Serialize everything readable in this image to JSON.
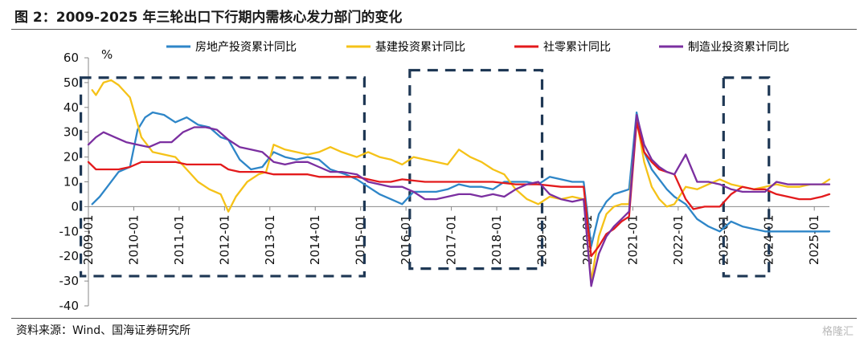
{
  "title": "图 2：2009-2025 年三轮出口下行期内需核心发力部门的变化",
  "source": "资料来源：Wind、国海证券研究所",
  "watermark": "格隆汇",
  "chart_data": {
    "type": "line",
    "ylabel": "%",
    "ylim": [
      -40,
      60
    ],
    "yticks": [
      -40,
      -30,
      -20,
      -10,
      0,
      10,
      20,
      30,
      40,
      50,
      60
    ],
    "x_range": [
      "2009-01",
      "2025-05"
    ],
    "xticks": [
      "2009-01",
      "2010-01",
      "2011-01",
      "2012-01",
      "2013-01",
      "2014-01",
      "2015-01",
      "2016-01",
      "2017-01",
      "2018-01",
      "2019-01",
      "2020-01",
      "2021-01",
      "2022-01",
      "2023-01",
      "2024-01",
      "2025-01"
    ],
    "grid": false,
    "legend_position": "top",
    "series": [
      {
        "name": "房地产投资累计同比",
        "color": "#2E86C8",
        "points": [
          [
            "2009-02",
            1
          ],
          [
            "2009-04",
            4
          ],
          [
            "2009-06",
            8
          ],
          [
            "2009-09",
            14
          ],
          [
            "2009-12",
            16
          ],
          [
            "2010-02",
            31
          ],
          [
            "2010-04",
            36
          ],
          [
            "2010-06",
            38
          ],
          [
            "2010-09",
            37
          ],
          [
            "2010-12",
            34
          ],
          [
            "2011-03",
            36
          ],
          [
            "2011-06",
            33
          ],
          [
            "2011-09",
            32
          ],
          [
            "2011-12",
            28
          ],
          [
            "2012-02",
            27
          ],
          [
            "2012-05",
            19
          ],
          [
            "2012-08",
            15
          ],
          [
            "2012-11",
            16
          ],
          [
            "2013-02",
            22
          ],
          [
            "2013-05",
            20
          ],
          [
            "2013-08",
            19
          ],
          [
            "2013-11",
            20
          ],
          [
            "2014-02",
            19
          ],
          [
            "2014-05",
            15
          ],
          [
            "2014-09",
            13
          ],
          [
            "2014-12",
            11
          ],
          [
            "2015-03",
            8
          ],
          [
            "2015-06",
            5
          ],
          [
            "2015-09",
            3
          ],
          [
            "2015-12",
            1
          ],
          [
            "2016-03",
            6
          ],
          [
            "2016-06",
            6
          ],
          [
            "2016-09",
            6
          ],
          [
            "2016-12",
            7
          ],
          [
            "2017-03",
            9
          ],
          [
            "2017-06",
            8
          ],
          [
            "2017-09",
            8
          ],
          [
            "2017-12",
            7
          ],
          [
            "2018-03",
            10
          ],
          [
            "2018-06",
            10
          ],
          [
            "2018-09",
            10
          ],
          [
            "2018-12",
            9
          ],
          [
            "2019-03",
            12
          ],
          [
            "2019-06",
            11
          ],
          [
            "2019-09",
            10
          ],
          [
            "2019-12",
            10
          ],
          [
            "2020-02",
            -16
          ],
          [
            "2020-04",
            -3
          ],
          [
            "2020-06",
            2
          ],
          [
            "2020-08",
            5
          ],
          [
            "2020-10",
            6
          ],
          [
            "2020-12",
            7
          ],
          [
            "2021-02",
            38
          ],
          [
            "2021-04",
            22
          ],
          [
            "2021-06",
            15
          ],
          [
            "2021-08",
            11
          ],
          [
            "2021-10",
            7
          ],
          [
            "2021-12",
            4
          ],
          [
            "2022-03",
            1
          ],
          [
            "2022-06",
            -5
          ],
          [
            "2022-09",
            -8
          ],
          [
            "2022-12",
            -10
          ],
          [
            "2023-03",
            -6
          ],
          [
            "2023-06",
            -8
          ],
          [
            "2023-09",
            -9
          ],
          [
            "2023-12",
            -10
          ],
          [
            "2024-03",
            -10
          ],
          [
            "2024-06",
            -10
          ],
          [
            "2024-09",
            -10
          ],
          [
            "2024-12",
            -10
          ],
          [
            "2025-03",
            -10
          ],
          [
            "2025-05",
            -10
          ]
        ]
      },
      {
        "name": "基建投资累计同比",
        "color": "#F5C218",
        "points": [
          [
            "2009-02",
            47
          ],
          [
            "2009-03",
            45
          ],
          [
            "2009-05",
            50
          ],
          [
            "2009-07",
            51
          ],
          [
            "2009-09",
            49
          ],
          [
            "2009-12",
            44
          ],
          [
            "2010-03",
            28
          ],
          [
            "2010-06",
            22
          ],
          [
            "2010-09",
            21
          ],
          [
            "2010-12",
            20
          ],
          [
            "2011-03",
            15
          ],
          [
            "2011-06",
            10
          ],
          [
            "2011-09",
            7
          ],
          [
            "2011-12",
            5
          ],
          [
            "2012-02",
            -2
          ],
          [
            "2012-04",
            4
          ],
          [
            "2012-07",
            10
          ],
          [
            "2012-10",
            13
          ],
          [
            "2012-12",
            14
          ],
          [
            "2013-02",
            25
          ],
          [
            "2013-05",
            23
          ],
          [
            "2013-08",
            22
          ],
          [
            "2013-11",
            21
          ],
          [
            "2014-02",
            22
          ],
          [
            "2014-05",
            24
          ],
          [
            "2014-08",
            22
          ],
          [
            "2014-12",
            20
          ],
          [
            "2015-03",
            22
          ],
          [
            "2015-06",
            20
          ],
          [
            "2015-09",
            19
          ],
          [
            "2015-12",
            17
          ],
          [
            "2016-03",
            20
          ],
          [
            "2016-06",
            19
          ],
          [
            "2016-09",
            18
          ],
          [
            "2016-12",
            17
          ],
          [
            "2017-03",
            23
          ],
          [
            "2017-06",
            20
          ],
          [
            "2017-09",
            18
          ],
          [
            "2017-12",
            15
          ],
          [
            "2018-03",
            13
          ],
          [
            "2018-06",
            7
          ],
          [
            "2018-09",
            3
          ],
          [
            "2018-12",
            1
          ],
          [
            "2019-03",
            4
          ],
          [
            "2019-06",
            3
          ],
          [
            "2019-09",
            4
          ],
          [
            "2019-12",
            3
          ],
          [
            "2020-02",
            -30
          ],
          [
            "2020-04",
            -12
          ],
          [
            "2020-06",
            -3
          ],
          [
            "2020-08",
            0
          ],
          [
            "2020-10",
            1
          ],
          [
            "2020-12",
            1
          ],
          [
            "2021-02",
            35
          ],
          [
            "2021-04",
            18
          ],
          [
            "2021-06",
            8
          ],
          [
            "2021-08",
            3
          ],
          [
            "2021-10",
            0
          ],
          [
            "2021-12",
            1
          ],
          [
            "2022-03",
            8
          ],
          [
            "2022-06",
            7
          ],
          [
            "2022-09",
            9
          ],
          [
            "2022-12",
            11
          ],
          [
            "2023-03",
            9
          ],
          [
            "2023-06",
            8
          ],
          [
            "2023-09",
            7
          ],
          [
            "2023-12",
            8
          ],
          [
            "2024-03",
            9
          ],
          [
            "2024-06",
            8
          ],
          [
            "2024-09",
            8
          ],
          [
            "2024-12",
            9
          ],
          [
            "2025-03",
            9
          ],
          [
            "2025-05",
            11
          ]
        ]
      },
      {
        "name": "社零累计同比",
        "color": "#E31A1C",
        "points": [
          [
            "2009-01",
            18
          ],
          [
            "2009-03",
            15
          ],
          [
            "2009-06",
            15
          ],
          [
            "2009-09",
            15
          ],
          [
            "2009-12",
            16
          ],
          [
            "2010-03",
            18
          ],
          [
            "2010-06",
            18
          ],
          [
            "2010-09",
            18
          ],
          [
            "2010-12",
            18
          ],
          [
            "2011-03",
            17
          ],
          [
            "2011-06",
            17
          ],
          [
            "2011-09",
            17
          ],
          [
            "2011-12",
            17
          ],
          [
            "2012-02",
            15
          ],
          [
            "2012-05",
            14
          ],
          [
            "2012-08",
            14
          ],
          [
            "2012-11",
            14
          ],
          [
            "2013-02",
            13
          ],
          [
            "2013-05",
            13
          ],
          [
            "2013-08",
            13
          ],
          [
            "2013-11",
            13
          ],
          [
            "2014-02",
            12
          ],
          [
            "2014-06",
            12
          ],
          [
            "2014-10",
            12
          ],
          [
            "2014-12",
            12
          ],
          [
            "2015-03",
            11
          ],
          [
            "2015-06",
            10
          ],
          [
            "2015-09",
            10
          ],
          [
            "2015-12",
            11
          ],
          [
            "2016-06",
            10
          ],
          [
            "2016-12",
            10
          ],
          [
            "2017-06",
            10
          ],
          [
            "2017-12",
            10
          ],
          [
            "2018-06",
            9
          ],
          [
            "2018-12",
            9
          ],
          [
            "2019-06",
            8
          ],
          [
            "2019-12",
            8
          ],
          [
            "2020-02",
            -20
          ],
          [
            "2020-04",
            -16
          ],
          [
            "2020-06",
            -11
          ],
          [
            "2020-08",
            -9
          ],
          [
            "2020-10",
            -6
          ],
          [
            "2020-12",
            -4
          ],
          [
            "2021-02",
            34
          ],
          [
            "2021-04",
            22
          ],
          [
            "2021-06",
            18
          ],
          [
            "2021-08",
            15
          ],
          [
            "2021-10",
            14
          ],
          [
            "2021-12",
            13
          ],
          [
            "2022-03",
            3
          ],
          [
            "2022-05",
            -1
          ],
          [
            "2022-08",
            0
          ],
          [
            "2022-12",
            0
          ],
          [
            "2023-03",
            5
          ],
          [
            "2023-06",
            8
          ],
          [
            "2023-09",
            7
          ],
          [
            "2023-12",
            7
          ],
          [
            "2024-03",
            5
          ],
          [
            "2024-06",
            4
          ],
          [
            "2024-09",
            3
          ],
          [
            "2024-12",
            3
          ],
          [
            "2025-03",
            4
          ],
          [
            "2025-05",
            5
          ]
        ]
      },
      {
        "name": "制造业投资累计同比",
        "color": "#7B2FA0",
        "points": [
          [
            "2009-01",
            25
          ],
          [
            "2009-03",
            28
          ],
          [
            "2009-05",
            30
          ],
          [
            "2009-08",
            28
          ],
          [
            "2009-11",
            26
          ],
          [
            "2010-02",
            25
          ],
          [
            "2010-05",
            24
          ],
          [
            "2010-08",
            26
          ],
          [
            "2010-11",
            26
          ],
          [
            "2011-02",
            30
          ],
          [
            "2011-05",
            32
          ],
          [
            "2011-08",
            32
          ],
          [
            "2011-11",
            31
          ],
          [
            "2012-02",
            27
          ],
          [
            "2012-05",
            24
          ],
          [
            "2012-08",
            23
          ],
          [
            "2012-11",
            22
          ],
          [
            "2013-02",
            18
          ],
          [
            "2013-05",
            17
          ],
          [
            "2013-08",
            18
          ],
          [
            "2013-11",
            18
          ],
          [
            "2014-02",
            16
          ],
          [
            "2014-05",
            14
          ],
          [
            "2014-08",
            14
          ],
          [
            "2014-12",
            13
          ],
          [
            "2015-03",
            10
          ],
          [
            "2015-06",
            9
          ],
          [
            "2015-09",
            8
          ],
          [
            "2015-12",
            8
          ],
          [
            "2016-03",
            6
          ],
          [
            "2016-06",
            3
          ],
          [
            "2016-09",
            3
          ],
          [
            "2016-12",
            4
          ],
          [
            "2017-03",
            5
          ],
          [
            "2017-06",
            5
          ],
          [
            "2017-09",
            4
          ],
          [
            "2017-12",
            5
          ],
          [
            "2018-03",
            4
          ],
          [
            "2018-06",
            7
          ],
          [
            "2018-09",
            9
          ],
          [
            "2018-12",
            10
          ],
          [
            "2019-03",
            5
          ],
          [
            "2019-06",
            3
          ],
          [
            "2019-09",
            2
          ],
          [
            "2019-12",
            3
          ],
          [
            "2020-02",
            -32
          ],
          [
            "2020-04",
            -19
          ],
          [
            "2020-06",
            -12
          ],
          [
            "2020-08",
            -8
          ],
          [
            "2020-10",
            -5
          ],
          [
            "2020-12",
            -2
          ],
          [
            "2021-02",
            37
          ],
          [
            "2021-04",
            25
          ],
          [
            "2021-06",
            19
          ],
          [
            "2021-08",
            16
          ],
          [
            "2021-10",
            14
          ],
          [
            "2021-12",
            13
          ],
          [
            "2022-03",
            21
          ],
          [
            "2022-06",
            10
          ],
          [
            "2022-09",
            10
          ],
          [
            "2022-12",
            9
          ],
          [
            "2023-03",
            7
          ],
          [
            "2023-06",
            6
          ],
          [
            "2023-09",
            6
          ],
          [
            "2023-12",
            6
          ],
          [
            "2024-03",
            10
          ],
          [
            "2024-06",
            9
          ],
          [
            "2024-09",
            9
          ],
          [
            "2024-12",
            9
          ],
          [
            "2025-03",
            9
          ],
          [
            "2025-05",
            9
          ]
        ]
      }
    ],
    "highlight_boxes": [
      {
        "from": "2008-11",
        "to": "2015-02",
        "ymin": -28,
        "ymax": 52
      },
      {
        "from": "2016-02",
        "to": "2019-01",
        "ymin": -25,
        "ymax": 55
      },
      {
        "from": "2023-01",
        "to": "2024-01",
        "ymin": -28,
        "ymax": 52
      }
    ]
  }
}
